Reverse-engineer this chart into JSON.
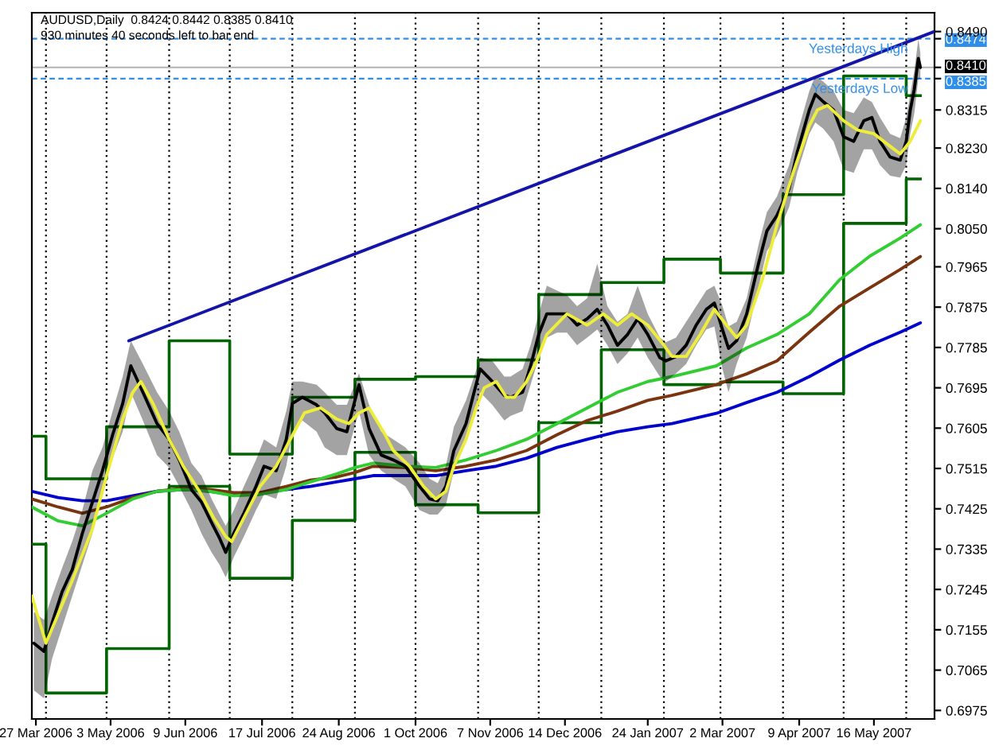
{
  "chart_data": {
    "type": "line",
    "title": "AUDUSD,Daily  0.8424 0.8442 0.8385 0.8410",
    "subtitle": "930 minutes 40 seconds left to bar end",
    "xlim": [
      "2006-03-25",
      "2007-06-15"
    ],
    "xticks": [
      {
        "value": "2006-03-27",
        "label": "27 Mar 2006"
      },
      {
        "value": "2006-05-03",
        "label": "3 May 2006"
      },
      {
        "value": "2006-06-09",
        "label": "9 Jun 2006"
      },
      {
        "value": "2006-07-17",
        "label": "17 Jul 2006"
      },
      {
        "value": "2006-08-24",
        "label": "24 Aug 2006"
      },
      {
        "value": "2006-10-01",
        "label": "1 Oct 2006"
      },
      {
        "value": "2006-11-07",
        "label": "7 Nov 2006"
      },
      {
        "value": "2006-12-14",
        "label": "14 Dec 2006"
      },
      {
        "value": "2007-01-24",
        "label": "24 Jan 2007"
      },
      {
        "value": "2007-03-02",
        "label": "2 Mar 2007"
      },
      {
        "value": "2007-04-09",
        "label": "9 Apr 2007"
      },
      {
        "value": "2007-05-16",
        "label": "16 May 2007"
      }
    ],
    "ylim": [
      0.6956,
      0.8532
    ],
    "yticks": [
      0.6975,
      0.7065,
      0.7155,
      0.7245,
      0.7335,
      0.7425,
      0.7515,
      0.7605,
      0.7695,
      0.7785,
      0.7875,
      0.7965,
      {
        "value": 0.805,
        "label": "0.8050"
      },
      {
        "value": 0.814,
        "label": "0.8140"
      },
      {
        "value": 0.823,
        "label": "0.8230"
      },
      0.8315,
      0.8385,
      {
        "value": 0.841,
        "label": "0.8410"
      },
      0.8474,
      {
        "value": 0.849,
        "label": "0.8490"
      }
    ],
    "series": [
      {
        "type": "step",
        "color": "#006400",
        "x": [
          "2006-03-25",
          "2006-04-01",
          "2006-05-01",
          "2006-06-01",
          "2006-07-01",
          "2006-08-01",
          "2006-09-01",
          "2006-10-01",
          "2006-11-01",
          "2006-12-01",
          "2007-01-01",
          "2007-02-01",
          "2007-03-01",
          "2007-04-01",
          "2007-05-01",
          "2007-06-01",
          "2007-06-08"
        ],
        "values": [
          0.7587,
          0.7492,
          0.7608,
          0.78,
          0.7547,
          0.7674,
          0.7714,
          0.772,
          0.7757,
          0.7903,
          0.793,
          0.7982,
          0.7951,
          0.8126,
          0.8391,
          0.8347,
          0.8347
        ]
      },
      {
        "type": "step",
        "color": "#006400",
        "x": [
          "2006-03-25",
          "2006-04-01",
          "2006-05-01",
          "2006-06-01",
          "2006-07-01",
          "2006-08-01",
          "2006-09-01",
          "2006-10-01",
          "2006-11-01",
          "2006-12-01",
          "2007-01-01",
          "2007-02-01",
          "2007-03-01",
          "2007-04-01",
          "2007-05-01",
          "2007-06-01",
          "2007-06-08"
        ],
        "values": [
          0.7346,
          0.7014,
          0.7113,
          0.7475,
          0.727,
          0.7399,
          0.7551,
          0.7434,
          0.7416,
          0.7617,
          0.778,
          0.7702,
          0.7708,
          0.7682,
          0.8062,
          0.8161,
          0.8161
        ]
      },
      {
        "color": "#0000cd",
        "x": [
          "2006-03-25",
          "2006-04-07",
          "2006-04-19",
          "2006-05-01",
          "2006-05-14",
          "2006-05-26",
          "2006-06-08",
          "2006-06-21",
          "2006-07-03",
          "2006-07-16",
          "2006-07-29",
          "2006-08-10",
          "2006-08-23",
          "2006-09-01",
          "2006-09-10",
          "2006-09-26",
          "2006-10-11",
          "2006-10-26",
          "2006-11-10",
          "2006-11-25",
          "2006-12-10",
          "2006-12-25",
          "2007-01-09",
          "2007-01-24",
          "2007-02-05",
          "2007-02-27",
          "2007-03-14",
          "2007-03-29",
          "2007-04-14",
          "2007-04-29",
          "2007-05-14",
          "2007-05-29",
          "2007-06-08"
        ],
        "values": [
          0.7464,
          0.745,
          0.7443,
          0.7443,
          0.7454,
          0.7464,
          0.7468,
          0.7464,
          0.7457,
          0.7461,
          0.7468,
          0.7475,
          0.7485,
          0.7492,
          0.7499,
          0.7499,
          0.7499,
          0.751,
          0.752,
          0.7538,
          0.7562,
          0.758,
          0.7597,
          0.7608,
          0.7615,
          0.7638,
          0.7662,
          0.7685,
          0.772,
          0.7757,
          0.779,
          0.7819,
          0.784
        ]
      },
      {
        "color": "#7a3510",
        "x": [
          "2006-03-25",
          "2006-04-07",
          "2006-04-19",
          "2006-05-01",
          "2006-05-14",
          "2006-05-26",
          "2006-06-08",
          "2006-06-21",
          "2006-07-03",
          "2006-07-16",
          "2006-07-29",
          "2006-08-10",
          "2006-08-23",
          "2006-09-01",
          "2006-09-10",
          "2006-09-26",
          "2006-10-11",
          "2006-10-26",
          "2006-11-10",
          "2006-11-25",
          "2006-12-10",
          "2006-12-25",
          "2007-01-09",
          "2007-01-24",
          "2007-02-05",
          "2007-02-27",
          "2007-03-14",
          "2007-03-29",
          "2007-04-14",
          "2007-04-29",
          "2007-05-14",
          "2007-05-29",
          "2007-06-08"
        ],
        "values": [
          0.7447,
          0.7429,
          0.7415,
          0.7429,
          0.745,
          0.7464,
          0.7471,
          0.7468,
          0.7461,
          0.7461,
          0.7475,
          0.7489,
          0.7496,
          0.7506,
          0.752,
          0.7517,
          0.751,
          0.752,
          0.7534,
          0.7555,
          0.759,
          0.7622,
          0.7643,
          0.7667,
          0.7678,
          0.7702,
          0.7726,
          0.7755,
          0.7819,
          0.7877,
          0.7918,
          0.7959,
          0.7988
        ]
      },
      {
        "color": "#32cd32",
        "x": [
          "2006-03-25",
          "2006-04-07",
          "2006-04-19",
          "2006-05-01",
          "2006-05-14",
          "2006-05-26",
          "2006-06-08",
          "2006-06-21",
          "2006-07-03",
          "2006-07-16",
          "2006-07-29",
          "2006-08-10",
          "2006-08-23",
          "2006-09-01",
          "2006-09-10",
          "2006-09-26",
          "2006-10-11",
          "2006-10-26",
          "2006-11-10",
          "2006-11-25",
          "2006-12-10",
          "2006-12-25",
          "2007-01-09",
          "2007-01-24",
          "2007-02-05",
          "2007-02-27",
          "2007-03-14",
          "2007-03-29",
          "2007-04-14",
          "2007-04-29",
          "2007-05-14",
          "2007-05-29",
          "2007-06-08"
        ],
        "values": [
          0.7429,
          0.7398,
          0.7387,
          0.7415,
          0.7447,
          0.7464,
          0.7468,
          0.7464,
          0.7454,
          0.7457,
          0.7468,
          0.7485,
          0.7503,
          0.7517,
          0.7527,
          0.752,
          0.7517,
          0.7534,
          0.7555,
          0.758,
          0.7615,
          0.765,
          0.7685,
          0.7709,
          0.772,
          0.7744,
          0.7784,
          0.7814,
          0.786,
          0.7936,
          0.7989,
          0.8029,
          0.8059
        ]
      },
      {
        "color": "#000000",
        "x": [
          "2006-03-26",
          "2006-03-31",
          "2006-04-04",
          "2006-04-09",
          "2006-04-14",
          "2006-04-19",
          "2006-04-24",
          "2006-04-29",
          "2006-05-04",
          "2006-05-09",
          "2006-05-13",
          "2006-05-19",
          "2006-05-26",
          "2006-06-01",
          "2006-06-06",
          "2006-06-12",
          "2006-06-17",
          "2006-06-22",
          "2006-06-26",
          "2006-06-29",
          "2006-07-03",
          "2006-07-08",
          "2006-07-14",
          "2006-07-18",
          "2006-07-24",
          "2006-07-29",
          "2006-08-01",
          "2006-08-06",
          "2006-08-13",
          "2006-08-17",
          "2006-08-23",
          "2006-08-28",
          "2006-09-03",
          "2006-09-08",
          "2006-09-14",
          "2006-09-20",
          "2006-09-26",
          "2006-10-03",
          "2006-10-08",
          "2006-10-12",
          "2006-10-16",
          "2006-10-20",
          "2006-10-26",
          "2006-10-30",
          "2006-11-02",
          "2006-11-08",
          "2006-11-14",
          "2006-11-17",
          "2006-11-23",
          "2006-11-27",
          "2006-12-01",
          "2006-12-05",
          "2006-12-10",
          "2006-12-15",
          "2006-12-20",
          "2006-12-25",
          "2006-12-30",
          "2007-01-04",
          "2007-01-09",
          "2007-01-14",
          "2007-01-19",
          "2007-01-24",
          "2007-01-30",
          "2007-02-02",
          "2007-02-07",
          "2007-02-12",
          "2007-02-17",
          "2007-02-22",
          "2007-02-26",
          "2007-03-02",
          "2007-03-05",
          "2007-03-09",
          "2007-03-14",
          "2007-03-20",
          "2007-03-24",
          "2007-03-29",
          "2007-04-04",
          "2007-04-08",
          "2007-04-14",
          "2007-04-17",
          "2007-04-21",
          "2007-04-26",
          "2007-05-01",
          "2007-05-06",
          "2007-05-11",
          "2007-05-15",
          "2007-05-19",
          "2007-05-24",
          "2007-05-29",
          "2007-06-01",
          "2007-06-03",
          "2007-06-05",
          "2007-06-07",
          "2007-06-08"
        ],
        "values": [
          0.7125,
          0.7107,
          0.717,
          0.724,
          0.7289,
          0.737,
          0.744,
          0.751,
          0.759,
          0.766,
          0.7744,
          0.7685,
          0.7615,
          0.758,
          0.7534,
          0.7468,
          0.744,
          0.7394,
          0.7359,
          0.7328,
          0.737,
          0.7415,
          0.7475,
          0.752,
          0.751,
          0.758,
          0.766,
          0.7674,
          0.7657,
          0.7639,
          0.7604,
          0.7597,
          0.7702,
          0.7604,
          0.7545,
          0.7534,
          0.752,
          0.7475,
          0.7447,
          0.7443,
          0.7475,
          0.7555,
          0.7615,
          0.7685,
          0.7737,
          0.7709,
          0.7678,
          0.7674,
          0.7685,
          0.7744,
          0.7814,
          0.786,
          0.786,
          0.786,
          0.7835,
          0.7849,
          0.787,
          0.7835,
          0.779,
          0.7814,
          0.7849,
          0.7814,
          0.7762,
          0.7755,
          0.7765,
          0.779,
          0.7835,
          0.787,
          0.7884,
          0.7825,
          0.7783,
          0.78,
          0.786,
          0.7975,
          0.8045,
          0.808,
          0.814,
          0.822,
          0.8315,
          0.835,
          0.8333,
          0.8315,
          0.8255,
          0.8245,
          0.8291,
          0.8298,
          0.8245,
          0.821,
          0.8203,
          0.8245,
          0.8315,
          0.8361,
          0.843,
          0.841
        ],
        "upper": [
          0.7195,
          0.7177,
          0.723,
          0.7293,
          0.7352,
          0.7422,
          0.751,
          0.7562,
          0.7643,
          0.772,
          0.78,
          0.7748,
          0.7685,
          0.7643,
          0.7597,
          0.7527,
          0.7499,
          0.7447,
          0.7412,
          0.7387,
          0.7422,
          0.7475,
          0.7534,
          0.758,
          0.7562,
          0.7643,
          0.7709,
          0.7709,
          0.7702,
          0.7685,
          0.7657,
          0.7657,
          0.7727,
          0.7657,
          0.7597,
          0.758,
          0.7562,
          0.7527,
          0.7492,
          0.7482,
          0.752,
          0.7608,
          0.7667,
          0.772,
          0.7762,
          0.7755,
          0.772,
          0.772,
          0.7737,
          0.779,
          0.786,
          0.7923,
          0.7912,
          0.7902,
          0.7877,
          0.7895,
          0.7972,
          0.7877,
          0.7842,
          0.786,
          0.7923,
          0.786,
          0.7807,
          0.7797,
          0.7807,
          0.7842,
          0.7877,
          0.7912,
          0.7923,
          0.7877,
          0.7832,
          0.7842,
          0.7895,
          0.8017,
          0.8087,
          0.8122,
          0.8192,
          0.8262,
          0.8357,
          0.8392,
          0.8378,
          0.8357,
          0.8315,
          0.8308,
          0.8343,
          0.8333,
          0.8298,
          0.8262,
          0.8252,
          0.8298,
          0.835,
          0.8403,
          0.8474,
          0.8442
        ],
        "lower": [
          0.702,
          0.7002,
          0.709,
          0.716,
          0.723,
          0.73,
          0.737,
          0.7457,
          0.7538,
          0.7597,
          0.7685,
          0.7622,
          0.7545,
          0.7517,
          0.7475,
          0.7422,
          0.737,
          0.7328,
          0.73,
          0.7272,
          0.7317,
          0.7363,
          0.7422,
          0.7457,
          0.7447,
          0.752,
          0.7597,
          0.7622,
          0.7597,
          0.7562,
          0.7545,
          0.7545,
          0.7643,
          0.7545,
          0.751,
          0.7492,
          0.7475,
          0.7422,
          0.7412,
          0.7412,
          0.7433,
          0.751,
          0.7573,
          0.7632,
          0.7685,
          0.7657,
          0.7622,
          0.7632,
          0.7643,
          0.7702,
          0.7762,
          0.7807,
          0.7818,
          0.7818,
          0.779,
          0.7807,
          0.7825,
          0.779,
          0.7748,
          0.7772,
          0.7807,
          0.7762,
          0.772,
          0.7709,
          0.7727,
          0.7748,
          0.779,
          0.7825,
          0.7832,
          0.7737,
          0.7685,
          0.7748,
          0.7807,
          0.7923,
          0.8,
          0.8035,
          0.8098,
          0.8175,
          0.8262,
          0.8287,
          0.8273,
          0.8245,
          0.8182,
          0.8175,
          0.8227,
          0.8227,
          0.8192,
          0.8168,
          0.8164,
          0.8192,
          0.8262,
          0.8308,
          0.8385,
          0.8385
        ]
      },
      {
        "color": "#eeee3a",
        "x": [
          "2006-03-25",
          "2006-04-01",
          "2006-04-14",
          "2006-04-24",
          "2006-05-01",
          "2006-05-09",
          "2006-05-14",
          "2006-05-18",
          "2006-05-24",
          "2006-06-01",
          "2006-06-08",
          "2006-06-16",
          "2006-06-23",
          "2006-06-29",
          "2006-07-02",
          "2006-07-08",
          "2006-07-16",
          "2006-07-24",
          "2006-07-31",
          "2006-08-07",
          "2006-08-15",
          "2006-08-23",
          "2006-08-29",
          "2006-09-03",
          "2006-09-08",
          "2006-09-16",
          "2006-09-20",
          "2006-09-28",
          "2006-10-05",
          "2006-10-11",
          "2006-10-16",
          "2006-10-20",
          "2006-10-26",
          "2006-10-31",
          "2006-11-04",
          "2006-11-10",
          "2006-11-15",
          "2006-11-19",
          "2006-11-25",
          "2006-11-30",
          "2006-12-05",
          "2006-12-15",
          "2006-12-25",
          "2007-01-02",
          "2007-01-09",
          "2007-01-16",
          "2007-01-24",
          "2007-02-01",
          "2007-02-05",
          "2007-02-12",
          "2007-02-19",
          "2007-02-26",
          "2007-03-04",
          "2007-03-09",
          "2007-03-14",
          "2007-03-22",
          "2007-03-29",
          "2007-04-06",
          "2007-04-14",
          "2007-04-18",
          "2007-04-23",
          "2007-05-01",
          "2007-05-08",
          "2007-05-16",
          "2007-05-24",
          "2007-05-29",
          "2007-06-03",
          "2007-06-08"
        ],
        "values": [
          0.723,
          0.7125,
          0.7265,
          0.738,
          0.7499,
          0.7625,
          0.7685,
          0.7709,
          0.766,
          0.758,
          0.752,
          0.7464,
          0.7405,
          0.7363,
          0.7352,
          0.7405,
          0.7475,
          0.752,
          0.758,
          0.7639,
          0.765,
          0.7625,
          0.7615,
          0.7639,
          0.765,
          0.759,
          0.7555,
          0.752,
          0.7475,
          0.7447,
          0.7464,
          0.752,
          0.758,
          0.765,
          0.7695,
          0.7709,
          0.7674,
          0.7674,
          0.7709,
          0.7755,
          0.7814,
          0.786,
          0.7835,
          0.786,
          0.7835,
          0.786,
          0.7835,
          0.779,
          0.7765,
          0.7765,
          0.7814,
          0.787,
          0.7835,
          0.7807,
          0.7835,
          0.794,
          0.8059,
          0.8175,
          0.828,
          0.8315,
          0.8325,
          0.8291,
          0.827,
          0.8262,
          0.8234,
          0.8217,
          0.8245,
          0.8291
        ]
      },
      {
        "color": "#1414a8",
        "x": [
          "2006-05-12",
          "2007-06-15"
        ],
        "values": [
          0.78,
          0.849
        ]
      }
    ],
    "ref_lines": [
      {
        "axis": "x",
        "value": "2006-04-01",
        "line_style": "dotted",
        "color": "#000000"
      },
      {
        "axis": "x",
        "value": "2006-05-01",
        "line_style": "dotted",
        "color": "#000000"
      },
      {
        "axis": "x",
        "value": "2006-06-01",
        "line_style": "dotted",
        "color": "#000000"
      },
      {
        "axis": "x",
        "value": "2006-07-01",
        "line_style": "dotted",
        "color": "#000000"
      },
      {
        "axis": "x",
        "value": "2006-08-01",
        "line_style": "dotted",
        "color": "#000000"
      },
      {
        "axis": "x",
        "value": "2006-09-01",
        "line_style": "dotted",
        "color": "#000000"
      },
      {
        "axis": "x",
        "value": "2006-10-01",
        "line_style": "dotted",
        "color": "#000000"
      },
      {
        "axis": "x",
        "value": "2006-11-01",
        "line_style": "dotted",
        "color": "#000000"
      },
      {
        "axis": "x",
        "value": "2006-12-01",
        "line_style": "dotted",
        "color": "#000000"
      },
      {
        "axis": "x",
        "value": "2007-01-01",
        "line_style": "dotted",
        "color": "#000000"
      },
      {
        "axis": "x",
        "value": "2007-02-01",
        "line_style": "dotted",
        "color": "#000000"
      },
      {
        "axis": "x",
        "value": "2007-03-01",
        "line_style": "dotted",
        "color": "#000000"
      },
      {
        "axis": "x",
        "value": "2007-04-01",
        "line_style": "dotted",
        "color": "#000000"
      },
      {
        "axis": "x",
        "value": "2007-05-01",
        "line_style": "dotted",
        "color": "#000000"
      },
      {
        "axis": "x",
        "value": "2007-06-01",
        "line_style": "dotted",
        "color": "#000000"
      },
      {
        "axis": "y",
        "value": 0.8474,
        "label": "Yesterdays High",
        "line_style": "dashed",
        "color": "#2f8fe8"
      },
      {
        "axis": "y",
        "value": 0.8385,
        "label": "Yesterdays Low",
        "line_style": "dashed",
        "color": "#2f8fe8"
      },
      {
        "axis": "y",
        "value": 0.841,
        "line_style": "solid",
        "color": "#000000"
      }
    ]
  }
}
